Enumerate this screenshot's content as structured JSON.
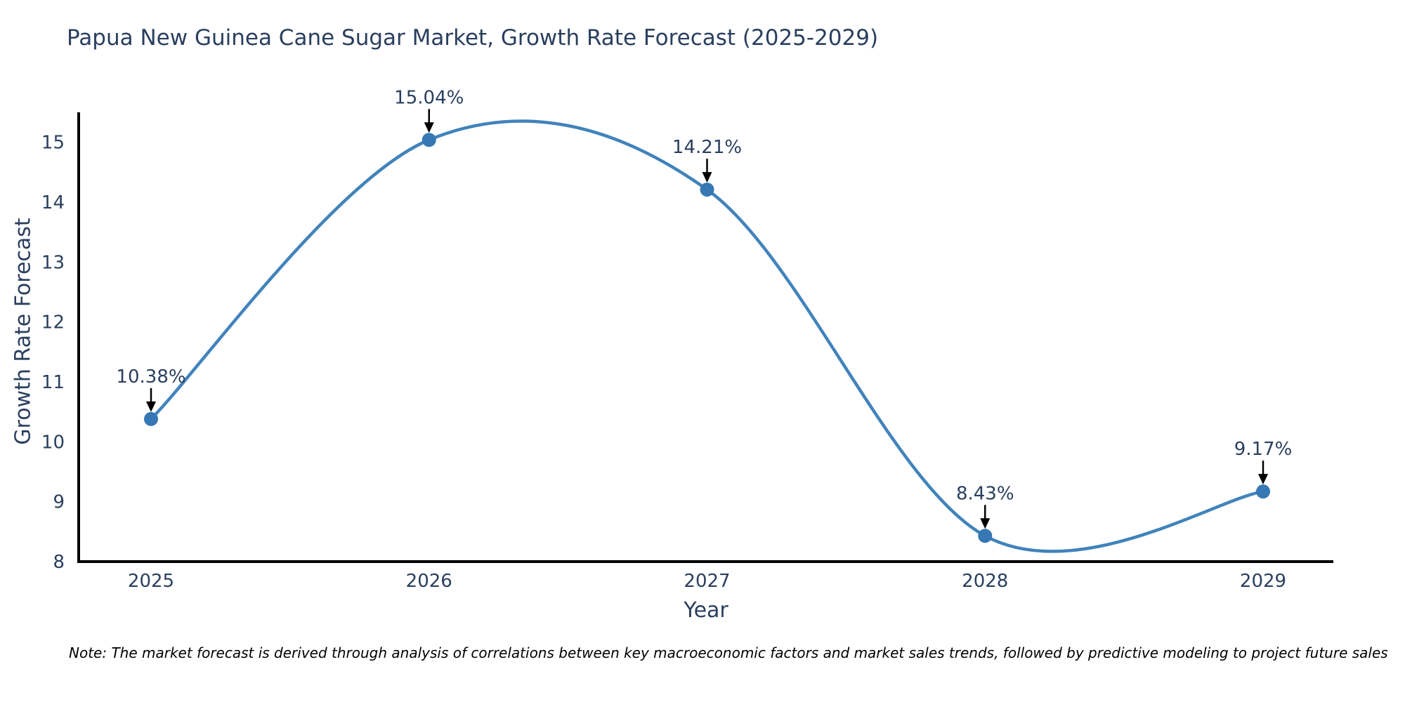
{
  "note": "Note: The market forecast is derived through analysis of correlations between key macroeconomic factors and market sales trends, followed by predictive modeling to project future sales",
  "chart_data": {
    "type": "line",
    "title": "Papua New Guinea Cane Sugar Market, Growth Rate Forecast (2025-2029)",
    "xlabel": "Year",
    "ylabel": "Growth Rate Forecast",
    "categories": [
      2025,
      2026,
      2027,
      2028,
      2029
    ],
    "series": [
      {
        "name": "Growth Rate Forecast",
        "values": [
          10.38,
          15.04,
          14.21,
          8.43,
          9.17
        ]
      }
    ],
    "point_labels": [
      "10.38%",
      "15.04%",
      "14.21%",
      "8.43%",
      "9.17%"
    ],
    "ylim": [
      8,
      15.5
    ],
    "yticks": [
      8,
      9,
      10,
      11,
      12,
      13,
      14,
      15
    ],
    "grid": false,
    "legend": "none",
    "line_shape": "spline",
    "marker": "circle",
    "colors": {
      "line": "#4183bb",
      "marker": "#3578b4",
      "axis": "#000000",
      "text": "#2a3f5f",
      "note_text": "#000000",
      "arrow": "#000000",
      "background": "#ffffff"
    }
  }
}
